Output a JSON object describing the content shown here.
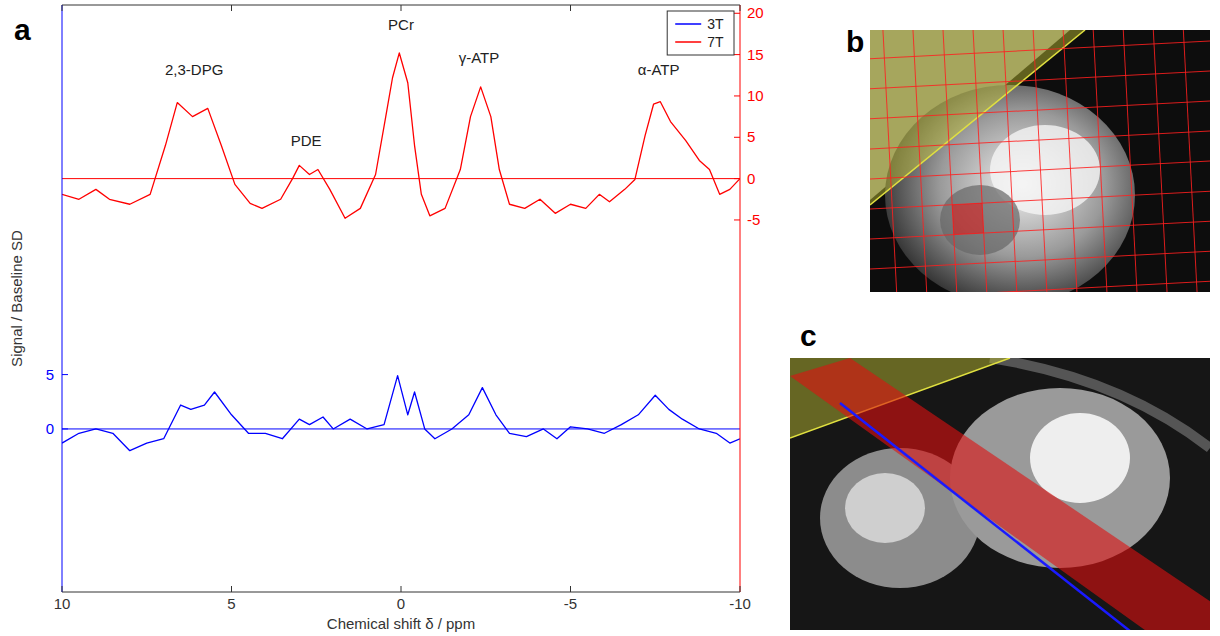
{
  "chart_data": {
    "type": "line",
    "panel_label": "a",
    "x_label": "Chemical shift δ / ppm",
    "y_label": "Signal / Baseline SD",
    "xlim": [
      10,
      -10
    ],
    "xticks": [
      10,
      5,
      0,
      -5,
      -10
    ],
    "ylim": [
      -15,
      39
    ],
    "yticks": [
      0,
      5
    ],
    "y2lim": [
      -50,
      21
    ],
    "y2ticks": [
      -5,
      0,
      5,
      10,
      15,
      20
    ],
    "legend": "upper right",
    "reference_lines": [
      {
        "axis": "y",
        "value": 0
      },
      {
        "axis": "y2",
        "value": 0
      }
    ],
    "series": [
      {
        "name": "3T",
        "color": "#0000ff",
        "axis": "y",
        "x": [
          10,
          9.5,
          9,
          8.5,
          8,
          7.5,
          7,
          6.5,
          6.2,
          5.8,
          5.5,
          5,
          4.5,
          4,
          3.5,
          3,
          2.7,
          2.3,
          2,
          1.5,
          1,
          0.5,
          0.1,
          -0.2,
          -0.4,
          -0.7,
          -1,
          -1.5,
          -2,
          -2.4,
          -2.8,
          -3.2,
          -3.7,
          -4.2,
          -4.6,
          -5,
          -5.5,
          -6,
          -6.5,
          -7,
          -7.5,
          -7.9,
          -8.3,
          -8.8,
          -9.3,
          -9.7,
          -10
        ],
        "values": [
          -1.3,
          -0.4,
          0,
          -0.4,
          -2,
          -1.3,
          -0.9,
          2.2,
          1.8,
          2.2,
          3.4,
          1.3,
          -0.4,
          -0.4,
          -0.9,
          0.9,
          0.4,
          1.1,
          0,
          0.9,
          0,
          0.4,
          4.9,
          1.3,
          3.4,
          0,
          -0.9,
          0,
          1.3,
          3.8,
          1.3,
          -0.4,
          -0.7,
          0,
          -0.9,
          0.2,
          0,
          -0.4,
          0.4,
          1.3,
          3.1,
          1.8,
          0.9,
          0,
          -0.4,
          -1.3,
          -0.9
        ]
      },
      {
        "name": "7T",
        "color": "#ff0000",
        "axis": "y2",
        "x": [
          10,
          9.5,
          9,
          8.6,
          8,
          7.4,
          6.95,
          6.6,
          6.15,
          5.7,
          5.3,
          4.9,
          4.45,
          4.1,
          3.55,
          3.2,
          3,
          2.7,
          2.45,
          2.1,
          1.65,
          1.2,
          0.75,
          0.45,
          0.25,
          0.05,
          -0.2,
          -0.4,
          -0.6,
          -0.85,
          -1.3,
          -1.75,
          -2.05,
          -2.35,
          -2.65,
          -2.9,
          -3.2,
          -3.65,
          -4.1,
          -4.55,
          -5,
          -5.45,
          -5.85,
          -6.15,
          -6.6,
          -6.9,
          -7.2,
          -7.45,
          -7.65,
          -7.95,
          -8.4,
          -8.8,
          -9.1,
          -9.4,
          -9.7,
          -10
        ],
        "values": [
          -1.9,
          -2.5,
          -1.3,
          -2.5,
          -3.1,
          -1.9,
          4,
          9.2,
          7.5,
          8.5,
          4,
          -0.7,
          -3,
          -3.6,
          -2.5,
          0,
          1.6,
          0.5,
          1.1,
          -1.3,
          -4.8,
          -3.6,
          0.5,
          7.5,
          12.2,
          15.2,
          11.6,
          4,
          -1.9,
          -4.5,
          -3.6,
          1.1,
          7.5,
          11.1,
          7.5,
          1.1,
          -3.1,
          -3.6,
          -2.5,
          -4.2,
          -3.1,
          -3.6,
          -1.9,
          -2.8,
          -1.3,
          -0.1,
          5.2,
          9,
          9.3,
          6.9,
          4.6,
          2.2,
          1.1,
          -1.9,
          -1.3,
          0
        ]
      }
    ],
    "annotations": [
      {
        "text": "2,3-DPG",
        "x": 6.1,
        "y": 12.5,
        "axis": "y2"
      },
      {
        "text": "PDE",
        "x": 2.8,
        "y": 4,
        "axis": "y2"
      },
      {
        "text": "PCr",
        "x": 0,
        "y": 18,
        "axis": "y2"
      },
      {
        "text": "γ-ATP",
        "x": -2.3,
        "y": 14,
        "axis": "y2"
      },
      {
        "text": "α-ATP",
        "x": -7.6,
        "y": 12.5,
        "axis": "y2"
      }
    ]
  },
  "images": [
    {
      "panel_label": "b"
    },
    {
      "panel_label": "c"
    }
  ]
}
